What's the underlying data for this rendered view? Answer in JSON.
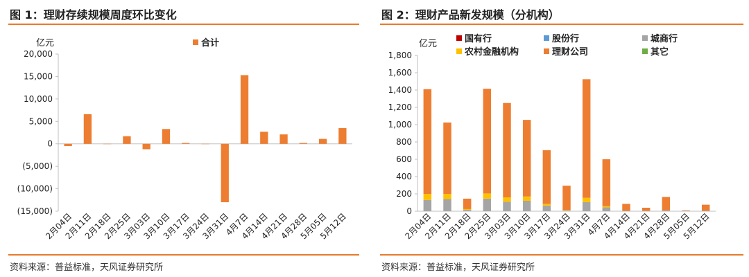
{
  "left": {
    "title": "图 1：理财存续规模周度环比变化",
    "source": "资料来源：普益标准，天风证券研究所",
    "chart_data": {
      "type": "bar",
      "ylabel": "亿元",
      "ylim": [
        -15000,
        20000
      ],
      "yticks": [
        20000,
        15000,
        10000,
        5000,
        0,
        -5000,
        -10000,
        -15000
      ],
      "ytick_labels": [
        "20,000",
        "15,000",
        "10,000",
        "5,000",
        "0",
        "(5,000)",
        "(10,000)",
        "(15,000)"
      ],
      "categories": [
        "2月04日",
        "2月11日",
        "2月18日",
        "2月25日",
        "3月03日",
        "3月10日",
        "3月17日",
        "3月24日",
        "3月31日",
        "4月7日",
        "4月14日",
        "4月21日",
        "4月28日",
        "5月05日",
        "5月12日"
      ],
      "series": [
        {
          "name": "合计",
          "color": "#ed7d31",
          "values": [
            -500,
            6600,
            0,
            1700,
            -1200,
            3300,
            200,
            0,
            -13000,
            15300,
            2700,
            2100,
            200,
            1100,
            3500
          ]
        }
      ],
      "legend": "top-center"
    }
  },
  "right": {
    "title": "图 2：理财产品新发规模（分机构）",
    "source": "资料来源：普益标准，天风证券研究所",
    "chart_data": {
      "type": "bar",
      "stacked": true,
      "ylabel": "亿元",
      "ylim": [
        0,
        1800
      ],
      "yticks": [
        0,
        200,
        400,
        600,
        800,
        1000,
        1200,
        1400,
        1600,
        1800
      ],
      "ytick_labels": [
        "0",
        "200",
        "400",
        "600",
        "800",
        "1,000",
        "1,200",
        "1,400",
        "1,600",
        "1,800"
      ],
      "categories": [
        "2月04日",
        "2月11日",
        "2月18日",
        "2月25日",
        "3月03日",
        "3月10日",
        "3月17日",
        "3月24日",
        "3月31日",
        "4月7日",
        "4月14日",
        "4月21日",
        "4月28日",
        "5月05日",
        "5月12日"
      ],
      "series": [
        {
          "name": "国有行",
          "color": "#c00000",
          "values": [
            0,
            0,
            0,
            0,
            0,
            0,
            0,
            0,
            0,
            0,
            0,
            0,
            0,
            0,
            0
          ]
        },
        {
          "name": "股份行",
          "color": "#5b9bd5",
          "values": [
            0,
            0,
            0,
            0,
            0,
            0,
            0,
            0,
            0,
            0,
            0,
            0,
            0,
            0,
            0
          ]
        },
        {
          "name": "城商行",
          "color": "#a5a5a5",
          "values": [
            130,
            140,
            15,
            145,
            110,
            120,
            65,
            10,
            105,
            45,
            5,
            5,
            10,
            5,
            5
          ]
        },
        {
          "name": "农村金融机构",
          "color": "#ffc000",
          "values": [
            70,
            60,
            10,
            60,
            50,
            50,
            20,
            5,
            50,
            15,
            0,
            0,
            0,
            0,
            0
          ]
        },
        {
          "name": "理财公司",
          "color": "#ed7d31",
          "values": [
            1210,
            825,
            120,
            1210,
            1090,
            885,
            620,
            280,
            1370,
            540,
            80,
            35,
            155,
            5,
            70
          ]
        },
        {
          "name": "其它",
          "color": "#70ad47",
          "values": [
            0,
            0,
            0,
            0,
            0,
            0,
            0,
            0,
            0,
            0,
            0,
            0,
            0,
            0,
            0
          ]
        }
      ],
      "legend": "top-left"
    }
  }
}
